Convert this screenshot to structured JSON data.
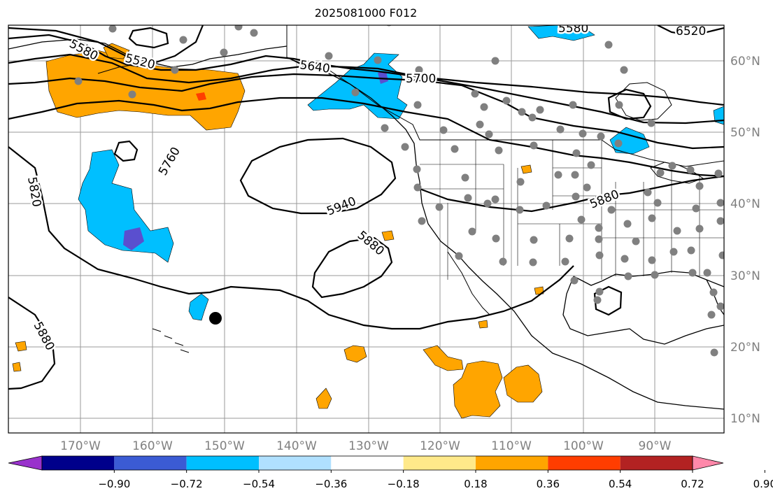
{
  "title": "2025081000 F012",
  "map": {
    "lat_labels": [
      "60°N",
      "50°N",
      "40°N",
      "30°N",
      "20°N",
      "10°N"
    ],
    "lon_labels": [
      "170°W",
      "160°W",
      "150°W",
      "140°W",
      "130°W",
      "120°W",
      "110°W",
      "100°W",
      "90°W"
    ],
    "contour_labels": [
      {
        "key": "c5580a",
        "text": "5580"
      },
      {
        "key": "c5520",
        "text": "5520"
      },
      {
        "key": "c5580b",
        "text": "5580"
      },
      {
        "key": "c6520",
        "text": "6520"
      },
      {
        "key": "c5640",
        "text": "5640"
      },
      {
        "key": "c5700",
        "text": "5700"
      },
      {
        "key": "c5760",
        "text": "5760"
      },
      {
        "key": "c5820",
        "text": "5820"
      },
      {
        "key": "c5940",
        "text": "5940"
      },
      {
        "key": "c5880a",
        "text": "5880"
      },
      {
        "key": "c5880b",
        "text": "5880"
      },
      {
        "key": "c5880c",
        "text": "5880"
      }
    ]
  },
  "colorbar": {
    "colors": [
      "#9932cc",
      "#00008b",
      "#3b5bd4",
      "#00bfff",
      "#b0e0ff",
      "#ffffff",
      "#ffe98a",
      "#ffa500",
      "#ff3d00",
      "#b22222",
      "#ff88aa"
    ],
    "tick_labels": [
      "−0.90",
      "−0.72",
      "−0.54",
      "−0.36",
      "−0.18",
      "0.18",
      "0.36",
      "0.54",
      "0.72",
      "0.90"
    ]
  },
  "legend_colors": {
    "orange": "#ffa500",
    "blue": "#00bfff",
    "purple": "#5a4fcf",
    "red": "#ff3d00",
    "station": "#808080"
  }
}
